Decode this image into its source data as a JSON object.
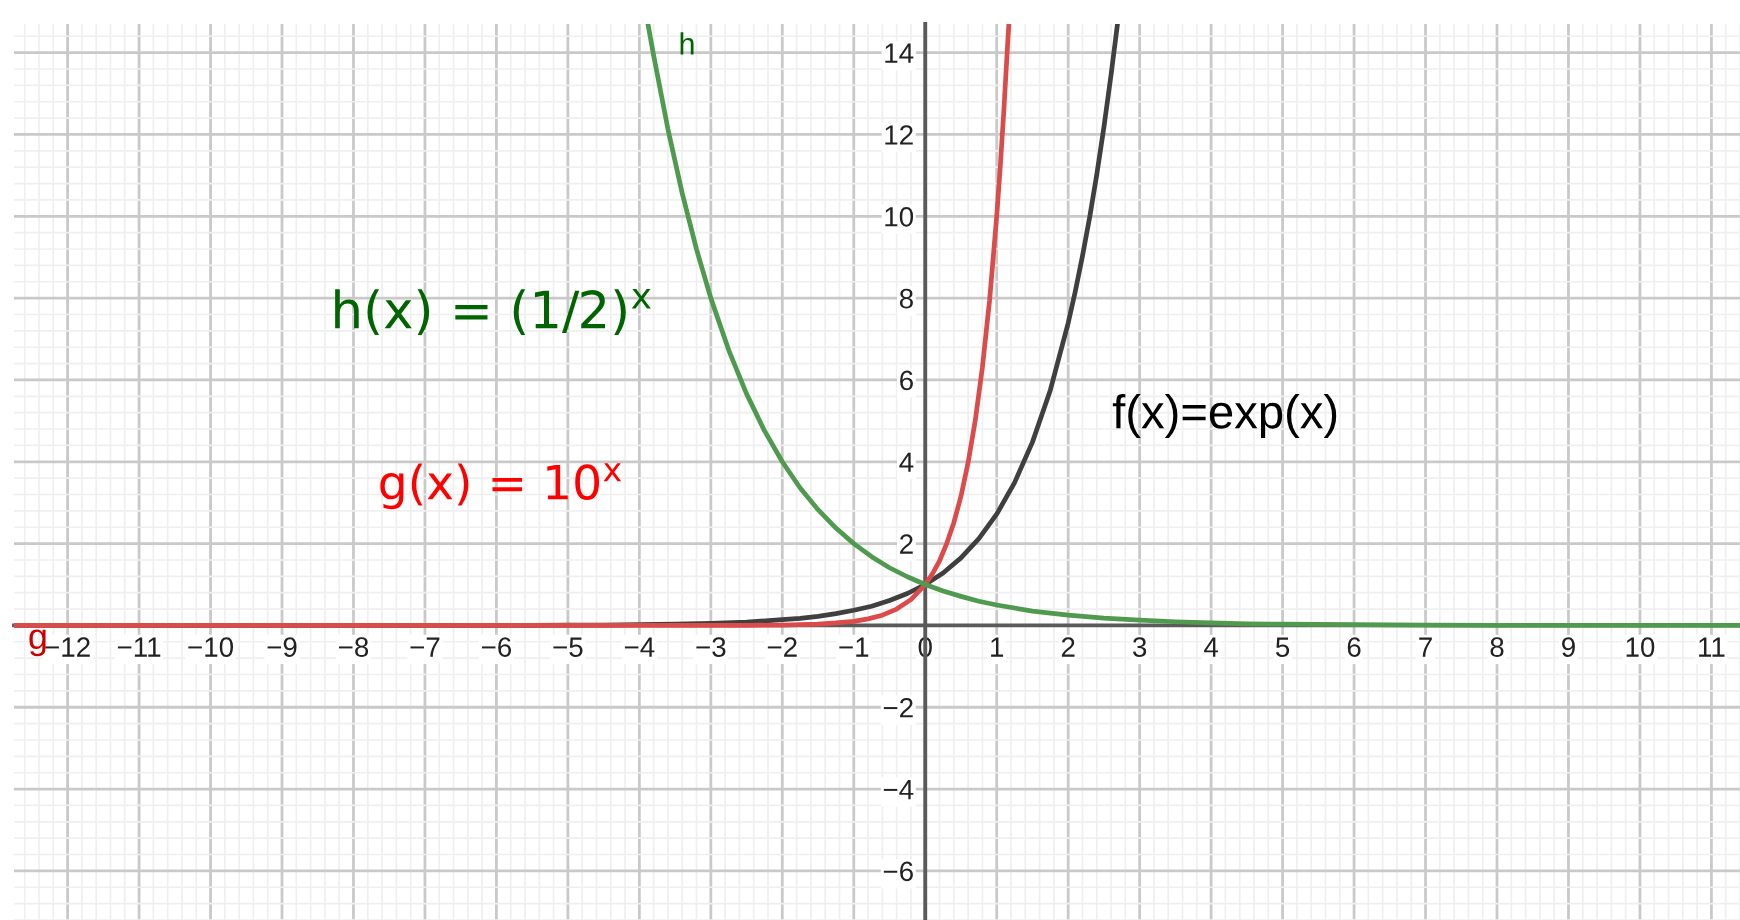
{
  "chart_data": {
    "type": "line",
    "series": [
      {
        "color": "#3f3f3f",
        "x": [
          -12.75,
          -12,
          -11,
          -10,
          -9,
          -8,
          -7,
          -6,
          -5.5,
          -5,
          -4.5,
          -4,
          -3.5,
          -3,
          -2.5,
          -2,
          -1.75,
          -1.5,
          -1.25,
          -1,
          -0.75,
          -0.5,
          -0.25,
          0,
          0.25,
          0.5,
          0.75,
          1,
          1.25,
          1.5,
          1.75,
          2,
          2.1,
          2.2,
          2.3,
          2.4,
          2.5,
          2.6,
          2.69
        ],
        "values": [
          0,
          0,
          0,
          0,
          0,
          0,
          0,
          0,
          0,
          0.01,
          0.01,
          0.02,
          0.03,
          0.05,
          0.08,
          0.14,
          0.17,
          0.22,
          0.29,
          0.37,
          0.47,
          0.61,
          0.78,
          1,
          1.28,
          1.65,
          2.12,
          2.72,
          3.49,
          4.48,
          5.75,
          7.39,
          8.17,
          9.03,
          9.97,
          11.02,
          12.18,
          13.46,
          14.7
        ]
      },
      {
        "name": "g",
        "color": "#db4b4b",
        "x": [
          -12.75,
          -12,
          -11,
          -10,
          -9,
          -8,
          -7,
          -6,
          -5,
          -4,
          -3,
          -2.5,
          -2,
          -1.75,
          -1.5,
          -1.25,
          -1,
          -0.8,
          -0.6,
          -0.4,
          -0.2,
          0,
          0.1,
          0.2,
          0.3,
          0.4,
          0.5,
          0.6,
          0.7,
          0.8,
          0.9,
          1,
          1.05,
          1.1,
          1.15,
          1.17
        ],
        "values": [
          0,
          0,
          0,
          0,
          0,
          0,
          0,
          0,
          0,
          0,
          0,
          0,
          0.01,
          0.02,
          0.03,
          0.06,
          0.1,
          0.16,
          0.25,
          0.4,
          0.63,
          1,
          1.26,
          1.58,
          2,
          2.51,
          3.16,
          3.98,
          5.01,
          6.31,
          7.94,
          10,
          11.22,
          12.59,
          14.13,
          14.7
        ]
      },
      {
        "name": "h",
        "color": "#4f9a4f",
        "x": [
          -3.88,
          -3.8,
          -3.6,
          -3.4,
          -3.2,
          -3,
          -2.75,
          -2.5,
          -2.25,
          -2,
          -1.75,
          -1.5,
          -1.25,
          -1,
          -0.75,
          -0.5,
          -0.25,
          0,
          0.25,
          0.5,
          0.75,
          1,
          1.5,
          2,
          2.5,
          3,
          3.5,
          4,
          4.5,
          5,
          6,
          7,
          8,
          9,
          10,
          11,
          11.4
        ],
        "values": [
          14.7,
          13.93,
          12.13,
          10.56,
          9.19,
          8,
          6.73,
          5.66,
          4.76,
          4,
          3.36,
          2.83,
          2.38,
          2,
          1.68,
          1.41,
          1.19,
          1,
          0.84,
          0.71,
          0.59,
          0.5,
          0.35,
          0.25,
          0.18,
          0.13,
          0.09,
          0.06,
          0.04,
          0.03,
          0.02,
          0.01,
          0,
          0,
          0,
          0,
          0
        ]
      }
    ],
    "annotations": [
      "h(x) = (1/2)$^{x}$",
      "f(x)=exp(x)",
      "g(x) = 10$^{x}$"
    ],
    "xlim": [
      -12.75,
      11.4
    ],
    "ylim": [
      -7.2,
      14.7
    ],
    "xticks": [
      -12,
      -11,
      -10,
      -9,
      -8,
      -7,
      -6,
      -5,
      -4,
      -3,
      -2,
      -1,
      0,
      1,
      2,
      3,
      4,
      5,
      6,
      7,
      8,
      9,
      10,
      11
    ],
    "yticks": [
      -6,
      -4,
      -2,
      2,
      4,
      6,
      8,
      10,
      12,
      14
    ],
    "grid": true,
    "legend": false
  }
}
